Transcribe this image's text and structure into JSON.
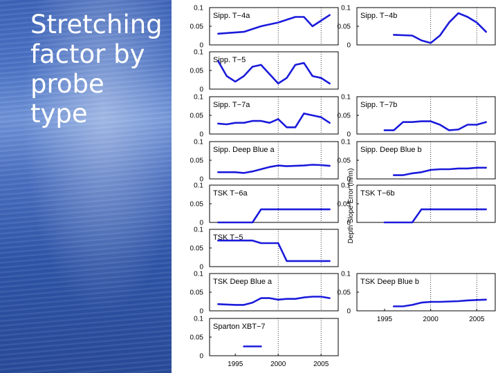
{
  "slide": {
    "title": "Stretching\nfactor by\nprobe type"
  },
  "figure": {
    "ylabel": "Depth Slope Error (m/m)"
  },
  "chart_data": [
    {
      "type": "line",
      "title": "Sipp. T−4a",
      "column": "left",
      "xlim": [
        1992,
        2007
      ],
      "ylim": [
        0,
        0.1
      ],
      "y_ticks": [
        "0",
        "0.05",
        "0.1"
      ],
      "x_ticks": [],
      "grid": "vertical dotted at 2000 and 2005",
      "x": [
        1993,
        1996,
        1998,
        2000,
        2002,
        2003,
        2004,
        2005,
        2006
      ],
      "y": [
        0.03,
        0.035,
        0.05,
        0.06,
        0.075,
        0.075,
        0.05,
        0.065,
        0.08
      ]
    },
    {
      "type": "line",
      "title": "Sipp. T−4b",
      "column": "right",
      "xlim": [
        1992,
        2007
      ],
      "ylim": [
        0,
        0.1
      ],
      "y_ticks": [
        "0",
        "0.05",
        "0.1"
      ],
      "x_ticks": [],
      "grid": "vertical dotted at 2000 and 2005",
      "x": [
        1996,
        1998,
        1999,
        2000,
        2001,
        2002,
        2003,
        2004,
        2005,
        2006
      ],
      "y": [
        0.027,
        0.025,
        0.012,
        0.005,
        0.025,
        0.06,
        0.085,
        0.075,
        0.06,
        0.035
      ]
    },
    {
      "type": "line",
      "title": "Sipp. T−5",
      "column": "left",
      "xlim": [
        1992,
        2007
      ],
      "ylim": [
        0,
        0.1
      ],
      "y_ticks": [
        "0",
        "0.05",
        "0.1"
      ],
      "x_ticks": [],
      "grid": "vertical dotted at 2000 and 2005",
      "x": [
        1993,
        1994,
        1995,
        1996,
        1997,
        1998,
        1999,
        2000,
        2001,
        2002,
        2003,
        2004,
        2005,
        2006
      ],
      "y": [
        0.075,
        0.035,
        0.02,
        0.035,
        0.06,
        0.065,
        0.04,
        0.015,
        0.03,
        0.065,
        0.07,
        0.035,
        0.03,
        0.015
      ]
    },
    {
      "type": "line",
      "title": "Sipp. T−7a",
      "column": "left",
      "xlim": [
        1992,
        2007
      ],
      "ylim": [
        0,
        0.1
      ],
      "y_ticks": [
        "0",
        "0.05",
        "0.1"
      ],
      "x_ticks": [],
      "grid": "vertical dotted at 2000 and 2005",
      "x": [
        1993,
        1994,
        1995,
        1996,
        1997,
        1998,
        1999,
        2000,
        2001,
        2002,
        2003,
        2004,
        2005,
        2006
      ],
      "y": [
        0.028,
        0.026,
        0.03,
        0.03,
        0.035,
        0.035,
        0.03,
        0.04,
        0.018,
        0.018,
        0.055,
        0.05,
        0.045,
        0.03
      ]
    },
    {
      "type": "line",
      "title": "Sipp. T−7b",
      "column": "right",
      "xlim": [
        1992,
        2007
      ],
      "ylim": [
        0,
        0.1
      ],
      "y_ticks": [
        "0",
        "0.05",
        "0.1"
      ],
      "x_ticks": [],
      "grid": "vertical dotted at 2000 and 2005",
      "x": [
        1995,
        1996,
        1997,
        1998,
        1999,
        2000,
        2001,
        2002,
        2003,
        2004,
        2005,
        2006
      ],
      "y": [
        0.01,
        0.01,
        0.032,
        0.032,
        0.034,
        0.034,
        0.025,
        0.01,
        0.012,
        0.025,
        0.025,
        0.032
      ]
    },
    {
      "type": "line",
      "title": "Sipp. Deep Blue a",
      "column": "left",
      "xlim": [
        1992,
        2007
      ],
      "ylim": [
        0,
        0.1
      ],
      "y_ticks": [
        "0",
        "0.05",
        "0.1"
      ],
      "x_ticks": [],
      "grid": "vertical dotted at 2000 and 2005",
      "x": [
        1993,
        1995,
        1996,
        1997,
        1998,
        1999,
        2000,
        2001,
        2002,
        2003,
        2004,
        2005,
        2006
      ],
      "y": [
        0.018,
        0.018,
        0.016,
        0.02,
        0.026,
        0.032,
        0.036,
        0.034,
        0.035,
        0.036,
        0.038,
        0.037,
        0.035
      ]
    },
    {
      "type": "line",
      "title": "Sipp. Deep Blue b",
      "column": "right",
      "xlim": [
        1992,
        2007
      ],
      "ylim": [
        0,
        0.1
      ],
      "y_ticks": [
        "0",
        "0.05",
        "0.1"
      ],
      "x_ticks": [],
      "grid": "vertical dotted at 2000 and 2005",
      "x": [
        1996,
        1997,
        1998,
        1999,
        2000,
        2001,
        2002,
        2003,
        2004,
        2005,
        2006
      ],
      "y": [
        0.01,
        0.01,
        0.015,
        0.018,
        0.024,
        0.026,
        0.026,
        0.028,
        0.028,
        0.03,
        0.03
      ]
    },
    {
      "type": "line",
      "title": "TSK T−6a",
      "column": "left",
      "xlim": [
        1992,
        2007
      ],
      "ylim": [
        0,
        0.1
      ],
      "y_ticks": [
        "0",
        "0.05",
        "0.1"
      ],
      "x_ticks": [],
      "grid": "vertical dotted at 2000 and 2005",
      "x": [
        1993,
        1997,
        1998,
        2006
      ],
      "y": [
        0,
        0,
        0.035,
        0.035
      ]
    },
    {
      "type": "line",
      "title": "TSK T−6b",
      "column": "right",
      "xlim": [
        1992,
        2007
      ],
      "ylim": [
        0,
        0.1
      ],
      "y_ticks": [
        "0",
        "0.05",
        "0.1"
      ],
      "x_ticks": [],
      "grid": "vertical dotted at 2000 and 2005",
      "x": [
        1995,
        1998,
        1999,
        2006
      ],
      "y": [
        0,
        0,
        0.035,
        0.035
      ]
    },
    {
      "type": "line",
      "title": "TSK T−5",
      "column": "left",
      "xlim": [
        1992,
        2007
      ],
      "ylim": [
        0,
        0.1
      ],
      "y_ticks": [
        "0",
        "0.05",
        "0.1"
      ],
      "x_ticks": [],
      "grid": "vertical dotted at 2000 and 2005",
      "x": [
        1993,
        1997,
        1998,
        2000,
        2001,
        2006
      ],
      "y": [
        0.07,
        0.07,
        0.063,
        0.063,
        0.015,
        0.015
      ]
    },
    {
      "type": "line",
      "title": "TSK Deep Blue a",
      "column": "left",
      "xlim": [
        1992,
        2007
      ],
      "ylim": [
        0,
        0.1
      ],
      "y_ticks": [
        "0",
        "0.05",
        "0.1"
      ],
      "x_ticks": [],
      "grid": "vertical dotted at 2000 and 2005",
      "x": [
        1993,
        1995,
        1996,
        1997,
        1998,
        1999,
        2000,
        2001,
        2002,
        2003,
        2004,
        2005,
        2006
      ],
      "y": [
        0.018,
        0.016,
        0.016,
        0.022,
        0.034,
        0.034,
        0.03,
        0.032,
        0.032,
        0.036,
        0.038,
        0.038,
        0.034
      ]
    },
    {
      "type": "line",
      "title": "TSK Deep Blue b",
      "column": "right",
      "xlim": [
        1992,
        2007
      ],
      "ylim": [
        0,
        0.1
      ],
      "y_ticks": [
        "0",
        "0.05",
        "0.1"
      ],
      "x_ticks": [
        "1995",
        "2000",
        "2005"
      ],
      "grid": "vertical dotted at 2000 and 2005",
      "x": [
        1996,
        1997,
        1998,
        1999,
        2000,
        2001,
        2002,
        2003,
        2004,
        2005,
        2006
      ],
      "y": [
        0.012,
        0.012,
        0.016,
        0.022,
        0.024,
        0.024,
        0.025,
        0.026,
        0.028,
        0.029,
        0.03
      ]
    },
    {
      "type": "line",
      "title": "Sparton XBT−7",
      "column": "left",
      "xlim": [
        1992,
        2007
      ],
      "ylim": [
        0,
        0.1
      ],
      "y_ticks": [
        "0",
        "0.05",
        "0.1"
      ],
      "x_ticks": [
        "1995",
        "2000",
        "2005"
      ],
      "grid": "vertical dotted at 2000 and 2005",
      "x": [
        1996,
        1998
      ],
      "y": [
        0.025,
        0.025
      ]
    }
  ]
}
